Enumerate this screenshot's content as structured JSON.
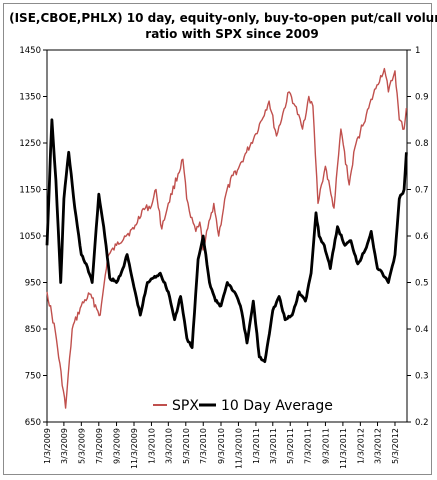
{
  "chart_data": {
    "type": "line",
    "title": "(ISE,CBOE,PHLX) 10 day, equity-only, buy-to-open put/call volume ratio with SPX since 2009",
    "title_lines": [
      "(ISE,CBOE,PHLX) 10 day, equity-only, buy-to-open put/call volume",
      "ratio with SPX since 2009"
    ],
    "y_left": {
      "range": [
        650,
        1450
      ],
      "ticks": [
        "650",
        "750",
        "850",
        "950",
        "1050",
        "1150",
        "1250",
        "1350",
        "1450"
      ]
    },
    "y_right": {
      "range": [
        0.2,
        1.0
      ],
      "ticks": [
        "0.2",
        "0.3",
        "0.4",
        "0.5",
        "0.6",
        "0.7",
        "0.8",
        "0.9",
        "1"
      ]
    },
    "x_tick_labels": [
      "1/3/2009",
      "3/3/2009",
      "5/3/2009",
      "7/3/2009",
      "9/3/2009",
      "11/3/2009",
      "1/3/2010",
      "3/3/2010",
      "5/3/2010",
      "7/3/2010",
      "9/3/2010",
      "11/3/2010",
      "1/3/2011",
      "3/3/2011",
      "5/3/2011",
      "7/3/2011",
      "9/3/2011",
      "11/3/2011",
      "1/3/2012",
      "3/3/2012",
      "5/3/2012"
    ],
    "grid": false,
    "legend_placement": "bottom-center",
    "series": [
      {
        "name": "SPX",
        "axis": "left",
        "color": "#c0504d",
        "x": [
          "1/3/2009",
          "2/1/2009",
          "3/9/2009",
          "4/1/2009",
          "5/3/2009",
          "6/1/2009",
          "7/8/2009",
          "8/3/2009",
          "9/3/2009",
          "10/1/2009",
          "11/3/2009",
          "12/1/2009",
          "1/3/2010",
          "1/19/2010",
          "2/8/2010",
          "3/3/2010",
          "4/23/2010",
          "5/6/2010",
          "5/20/2010",
          "6/7/2010",
          "6/21/2010",
          "7/2/2010",
          "8/9/2010",
          "8/26/2010",
          "9/20/2010",
          "10/15/2010",
          "11/3/2010",
          "12/1/2010",
          "1/3/2011",
          "2/18/2011",
          "3/16/2011",
          "4/29/2011",
          "5/20/2011",
          "6/15/2011",
          "7/7/2011",
          "7/21/2011",
          "8/8/2011",
          "8/20/2011",
          "9/3/2011",
          "9/22/2011",
          "10/3/2011",
          "10/27/2011",
          "11/25/2011",
          "12/15/2011",
          "1/3/2012",
          "2/1/2012",
          "3/1/2012",
          "3/27/2012",
          "4/10/2012",
          "5/3/2012",
          "5/18/2012",
          "6/4/2012",
          "6/12/2012"
        ],
        "values": [
          930,
          845,
          680,
          850,
          900,
          925,
          880,
          1005,
          1030,
          1050,
          1065,
          1105,
          1115,
          1150,
          1065,
          1120,
          1215,
          1130,
          1090,
          1060,
          1080,
          1020,
          1120,
          1050,
          1140,
          1180,
          1195,
          1230,
          1270,
          1340,
          1265,
          1360,
          1330,
          1280,
          1350,
          1330,
          1120,
          1160,
          1200,
          1140,
          1110,
          1280,
          1160,
          1240,
          1275,
          1325,
          1375,
          1410,
          1360,
          1405,
          1300,
          1280,
          1325
        ]
      },
      {
        "name": "10 Day Average",
        "axis": "right",
        "color": "#000000",
        "x": [
          "1/3/2009",
          "1/20/2009",
          "2/3/2009",
          "2/20/2009",
          "3/3/2009",
          "3/20/2009",
          "4/10/2009",
          "5/3/2009",
          "5/20/2009",
          "6/10/2009",
          "7/3/2009",
          "7/20/2009",
          "8/10/2009",
          "9/3/2009",
          "9/25/2009",
          "10/10/2009",
          "11/3/2009",
          "11/25/2009",
          "12/20/2009",
          "1/10/2010",
          "2/3/2010",
          "3/3/2010",
          "3/25/2010",
          "4/15/2010",
          "5/7/2010",
          "5/25/2010",
          "6/15/2010",
          "7/3/2010",
          "7/25/2010",
          "8/15/2010",
          "9/3/2010",
          "9/25/2010",
          "10/20/2010",
          "11/10/2010",
          "12/3/2010",
          "12/25/2010",
          "1/15/2011",
          "2/3/2011",
          "3/3/2011",
          "3/25/2011",
          "4/15/2011",
          "5/10/2011",
          "6/3/2011",
          "6/25/2011",
          "7/15/2011",
          "8/1/2011",
          "8/12/2011",
          "8/30/2011",
          "9/20/2011",
          "10/15/2011",
          "11/10/2011",
          "12/1/2011",
          "12/25/2011",
          "1/20/2012",
          "2/10/2012",
          "3/3/2012",
          "3/20/2012",
          "4/10/2012",
          "5/3/2012",
          "5/18/2012",
          "6/4/2012",
          "6/12/2012"
        ],
        "values": [
          0.58,
          0.85,
          0.72,
          0.5,
          0.68,
          0.78,
          0.66,
          0.56,
          0.54,
          0.5,
          0.69,
          0.62,
          0.51,
          0.5,
          0.53,
          0.56,
          0.49,
          0.43,
          0.5,
          0.51,
          0.52,
          0.48,
          0.42,
          0.47,
          0.38,
          0.36,
          0.55,
          0.6,
          0.5,
          0.46,
          0.45,
          0.5,
          0.48,
          0.45,
          0.37,
          0.46,
          0.34,
          0.33,
          0.44,
          0.47,
          0.42,
          0.43,
          0.48,
          0.46,
          0.52,
          0.65,
          0.6,
          0.58,
          0.53,
          0.62,
          0.58,
          0.59,
          0.54,
          0.57,
          0.61,
          0.53,
          0.52,
          0.5,
          0.56,
          0.68,
          0.7,
          0.78
        ]
      }
    ]
  },
  "legend": [
    {
      "label": "SPX",
      "color": "#c0504d"
    },
    {
      "label": "10 Day Average",
      "color": "#000000"
    }
  ]
}
